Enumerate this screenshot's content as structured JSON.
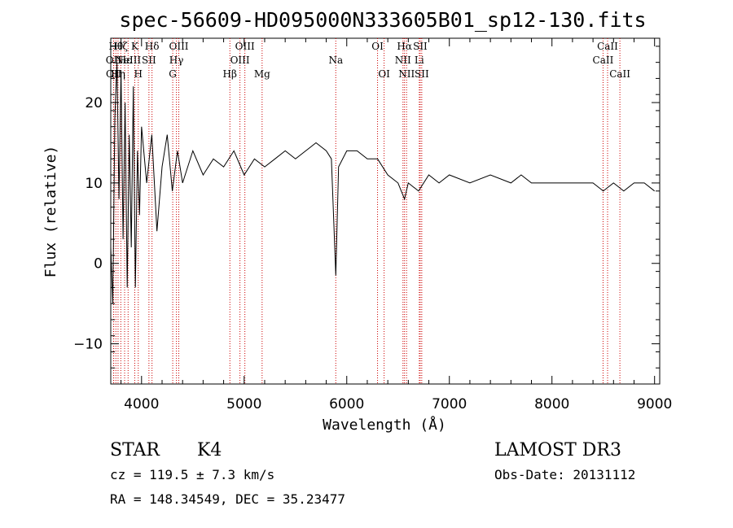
{
  "title": "spec-56609-HD095000N333605B01_sp12-130.fits",
  "chart_data": {
    "type": "line",
    "title": "spec-56609-HD095000N333605B01_sp12-130.fits",
    "xlabel": "Wavelength (Å)",
    "ylabel": "Flux (relative)",
    "xlim": [
      3700,
      9050
    ],
    "ylim": [
      -15,
      28
    ],
    "xticks": [
      4000,
      5000,
      6000,
      7000,
      8000,
      9000
    ],
    "yticks": [
      -10,
      0,
      10,
      20
    ],
    "grid": false,
    "spectrum_points": [
      [
        3700,
        2
      ],
      [
        3720,
        -5
      ],
      [
        3740,
        18
      ],
      [
        3760,
        25
      ],
      [
        3780,
        8
      ],
      [
        3800,
        24
      ],
      [
        3820,
        3
      ],
      [
        3840,
        20
      ],
      [
        3860,
        -3
      ],
      [
        3880,
        16
      ],
      [
        3900,
        2
      ],
      [
        3920,
        22
      ],
      [
        3940,
        -3
      ],
      [
        3960,
        14
      ],
      [
        3980,
        6
      ],
      [
        4000,
        17
      ],
      [
        4050,
        10
      ],
      [
        4100,
        16
      ],
      [
        4150,
        4
      ],
      [
        4200,
        12
      ],
      [
        4250,
        16
      ],
      [
        4300,
        9
      ],
      [
        4350,
        14
      ],
      [
        4400,
        10
      ],
      [
        4500,
        14
      ],
      [
        4600,
        11
      ],
      [
        4700,
        13
      ],
      [
        4800,
        12
      ],
      [
        4900,
        14
      ],
      [
        5000,
        11
      ],
      [
        5100,
        13
      ],
      [
        5200,
        12
      ],
      [
        5300,
        13
      ],
      [
        5400,
        14
      ],
      [
        5500,
        13
      ],
      [
        5600,
        14
      ],
      [
        5700,
        15
      ],
      [
        5800,
        14
      ],
      [
        5850,
        13
      ],
      [
        5893,
        -1.5
      ],
      [
        5920,
        12
      ],
      [
        6000,
        14
      ],
      [
        6100,
        14
      ],
      [
        6200,
        13
      ],
      [
        6300,
        13
      ],
      [
        6400,
        11
      ],
      [
        6500,
        10
      ],
      [
        6563,
        8
      ],
      [
        6600,
        10
      ],
      [
        6700,
        9
      ],
      [
        6800,
        11
      ],
      [
        6900,
        10
      ],
      [
        7000,
        11
      ],
      [
        7200,
        10
      ],
      [
        7400,
        11
      ],
      [
        7600,
        10
      ],
      [
        7700,
        11
      ],
      [
        7800,
        10
      ],
      [
        7900,
        10
      ],
      [
        8000,
        10
      ],
      [
        8200,
        10
      ],
      [
        8400,
        10
      ],
      [
        8500,
        9
      ],
      [
        8600,
        10
      ],
      [
        8700,
        9
      ],
      [
        8800,
        10
      ],
      [
        8900,
        10
      ],
      [
        9000,
        9
      ]
    ],
    "line_markers": [
      {
        "wave": 3727,
        "label": "OII",
        "row": 2
      },
      {
        "wave": 3729,
        "label": "OII",
        "row": 3
      },
      {
        "wave": 3750,
        "label": "Hθ",
        "row": 1
      },
      {
        "wave": 3771,
        "label": "Hη",
        "row": 3
      },
      {
        "wave": 3798,
        "label": "Hζ",
        "row": 1
      },
      {
        "wave": 3835,
        "label": "Hε",
        "row": 2
      },
      {
        "wave": 3869,
        "label": "NeIII",
        "row": 2
      },
      {
        "wave": 3934,
        "label": "K",
        "row": 1
      },
      {
        "wave": 3968,
        "label": "H",
        "row": 3
      },
      {
        "wave": 4072,
        "label": "SII",
        "row": 2
      },
      {
        "wave": 4102,
        "label": "Hδ",
        "row": 1
      },
      {
        "wave": 4304,
        "label": "G",
        "row": 3
      },
      {
        "wave": 4340,
        "label": "Hγ",
        "row": 2
      },
      {
        "wave": 4363,
        "label": "OIII",
        "row": 1
      },
      {
        "wave": 4861,
        "label": "Hβ",
        "row": 3
      },
      {
        "wave": 4959,
        "label": "OIII",
        "row": 2
      },
      {
        "wave": 5007,
        "label": "OIII",
        "row": 1
      },
      {
        "wave": 5175,
        "label": "Mg",
        "row": 3
      },
      {
        "wave": 5893,
        "label": "Na",
        "row": 2
      },
      {
        "wave": 6300,
        "label": "OI",
        "row": 1
      },
      {
        "wave": 6364,
        "label": "OI",
        "row": 3
      },
      {
        "wave": 6548,
        "label": "NII",
        "row": 2
      },
      {
        "wave": 6563,
        "label": "Hα",
        "row": 1
      },
      {
        "wave": 6583,
        "label": "NII",
        "row": 3
      },
      {
        "wave": 6707,
        "label": "Li",
        "row": 2
      },
      {
        "wave": 6716,
        "label": "SII",
        "row": 1
      },
      {
        "wave": 6731,
        "label": "SII",
        "row": 3
      },
      {
        "wave": 8498,
        "label": "CaII",
        "row": 2
      },
      {
        "wave": 8542,
        "label": "CaII",
        "row": 1
      },
      {
        "wave": 8662,
        "label": "CaII",
        "row": 3
      }
    ]
  },
  "footer": {
    "class_label": "STAR",
    "subclass_label": "K4",
    "cz_text": "cz = 119.5 ± 7.3 km/s",
    "radec_text": "RA = 148.34549, DEC =  35.23477",
    "survey_text": "LAMOST DR3",
    "obsdate_text": "Obs-Date: 20131112"
  },
  "colors": {
    "spectrum": "#000000",
    "marker_line": "#cc0000",
    "axes": "#000000"
  }
}
